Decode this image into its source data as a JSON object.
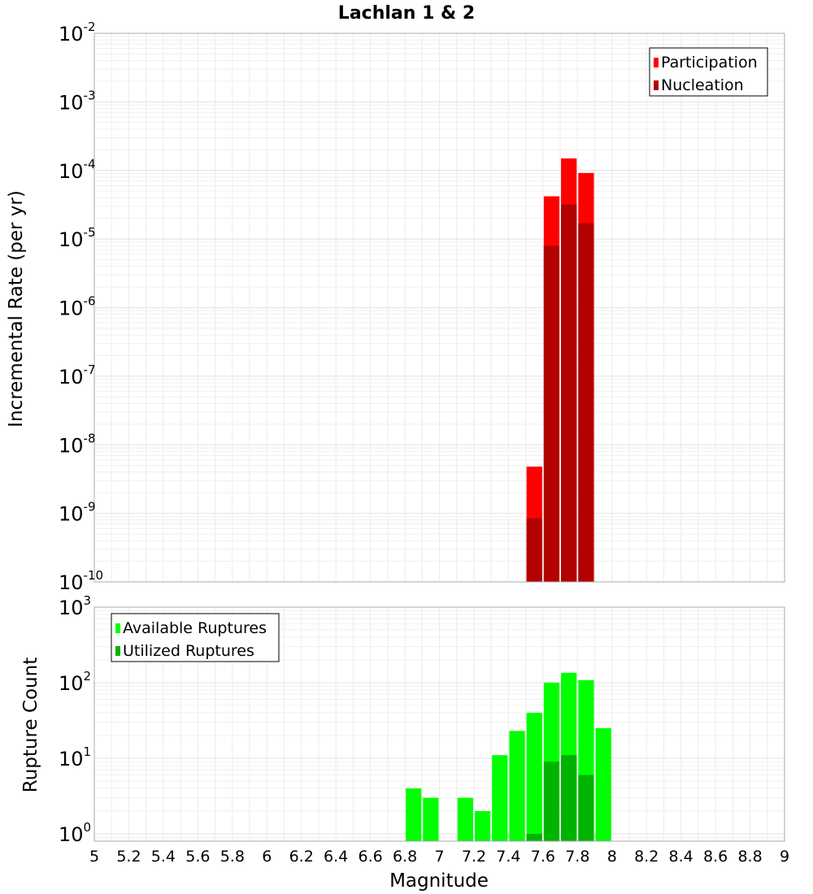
{
  "chart_data": [
    {
      "type": "bar",
      "title": "Lachlan 1 & 2",
      "xlabel": "",
      "ylabel": "Incremental Rate (per yr)",
      "yscale": "log",
      "xlim": [
        5,
        9
      ],
      "ylim": [
        1e-10,
        0.01
      ],
      "grid": true,
      "legend": "top-right",
      "y_ticks": [
        {
          "base": "10",
          "exp": "-10"
        },
        {
          "base": "10",
          "exp": "-9"
        },
        {
          "base": "10",
          "exp": "-8"
        },
        {
          "base": "10",
          "exp": "-7"
        },
        {
          "base": "10",
          "exp": "-6"
        },
        {
          "base": "10",
          "exp": "-5"
        },
        {
          "base": "10",
          "exp": "-4"
        },
        {
          "base": "10",
          "exp": "-3"
        },
        {
          "base": "10",
          "exp": "-2"
        }
      ],
      "series": [
        {
          "name": "Participation",
          "color": "#ff0000",
          "x": [
            7.55,
            7.65,
            7.75,
            7.85
          ],
          "values": [
            4.8e-09,
            4.2e-05,
            0.00015,
            9.2e-05
          ]
        },
        {
          "name": "Nucleation",
          "color": "#b30000",
          "x": [
            7.55,
            7.65,
            7.75,
            7.85
          ],
          "values": [
            8.5e-10,
            8e-06,
            3.2e-05,
            1.7e-05
          ]
        }
      ]
    },
    {
      "type": "bar",
      "title": "",
      "xlabel": "Magnitude",
      "ylabel": "Rupture Count",
      "yscale": "log",
      "xlim": [
        5,
        9
      ],
      "ylim": [
        0.8,
        1000
      ],
      "grid": true,
      "legend": "top-left",
      "x_ticks": [
        "5",
        "5.2",
        "5.4",
        "5.6",
        "5.8",
        "6",
        "6.2",
        "6.4",
        "6.6",
        "6.8",
        "7",
        "7.2",
        "7.4",
        "7.6",
        "7.8",
        "8",
        "8.2",
        "8.4",
        "8.6",
        "8.8",
        "9"
      ],
      "y_ticks": [
        {
          "base": "10",
          "exp": "0"
        },
        {
          "base": "10",
          "exp": "1"
        },
        {
          "base": "10",
          "exp": "2"
        },
        {
          "base": "10",
          "exp": "3"
        }
      ],
      "series": [
        {
          "name": "Available Ruptures",
          "color": "#00ff00",
          "x": [
            6.85,
            6.95,
            7.15,
            7.25,
            7.35,
            7.45,
            7.55,
            7.65,
            7.75,
            7.85,
            7.95
          ],
          "values": [
            4,
            3,
            3,
            2,
            11,
            23,
            40,
            100,
            135,
            108,
            25
          ]
        },
        {
          "name": "Utilized Ruptures",
          "color": "#00b300",
          "x": [
            7.55,
            7.65,
            7.75,
            7.85
          ],
          "values": [
            1,
            9,
            11,
            6
          ]
        }
      ]
    }
  ]
}
